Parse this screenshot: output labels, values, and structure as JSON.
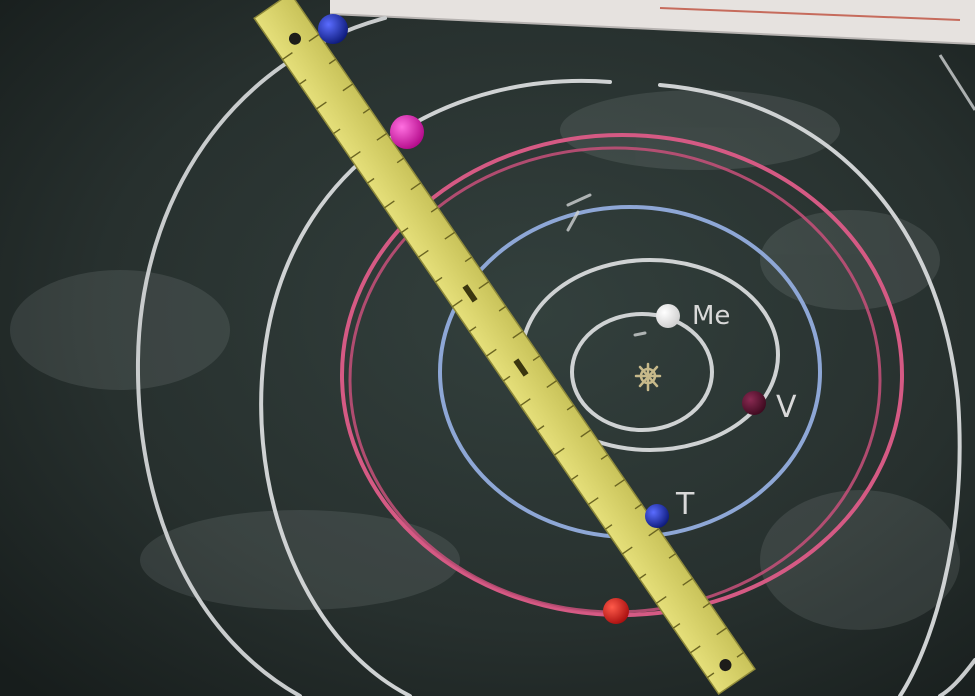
{
  "labels": {
    "mercury": "Me",
    "venus": "V",
    "earth": "T"
  },
  "colors": {
    "board": "#27302e",
    "chalk_white": "#cfd2d3",
    "chalk_pink": "#d55a84",
    "chalk_blue": "#8ea7d6",
    "ruler": "#d8d36a",
    "magnet_blue": "#1b2ea8",
    "magnet_magenta": "#e01bb4",
    "magnet_white": "#f3f3f3",
    "magnet_maroon": "#5b1230",
    "magnet_red": "#d61f1f"
  },
  "objects": [
    "chalkboard",
    "chalk-orbit-mercury",
    "chalk-orbit-venus",
    "chalk-orbit-earth",
    "chalk-orbit-mars",
    "chalk-orbit-outer",
    "chalk-orbit-outermost",
    "sun-sketch",
    "wooden-ruler",
    "magnet-markers"
  ]
}
